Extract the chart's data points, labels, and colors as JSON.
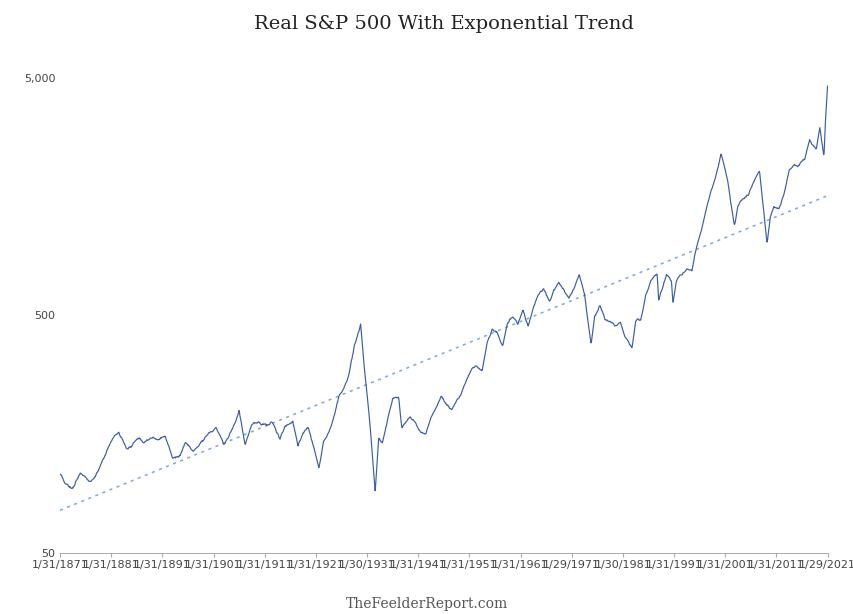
{
  "title": "Real S&P 500 With Exponential Trend",
  "footer": "TheFeelderReport.com",
  "line_color": "#3b5ea6",
  "trend_color": "#7fa8d4",
  "background_color": "#ffffff",
  "yticks": [
    50,
    500,
    5000
  ],
  "ytick_labels": [
    "50",
    "500",
    "5,000"
  ],
  "x_tick_labels": [
    "1/31/1871",
    "1/31/1881",
    "1/31/1891",
    "1/31/1901",
    "1/31/1911",
    "1/31/1921",
    "1/30/1931",
    "1/31/1941",
    "1/31/1951",
    "1/31/1961",
    "1/29/1971",
    "1/30/1981",
    "1/31/1991",
    "1/31/2001",
    "1/31/2011",
    "1/29/2021"
  ],
  "title_fontsize": 14,
  "tick_fontsize": 8,
  "footer_fontsize": 10,
  "waypoints": [
    [
      1871.08,
      96
    ],
    [
      1872.0,
      85
    ],
    [
      1873.5,
      80
    ],
    [
      1875.0,
      95
    ],
    [
      1877.0,
      90
    ],
    [
      1878.5,
      100
    ],
    [
      1880.0,
      115
    ],
    [
      1881.5,
      130
    ],
    [
      1882.5,
      135
    ],
    [
      1884.0,
      115
    ],
    [
      1885.0,
      118
    ],
    [
      1886.5,
      132
    ],
    [
      1887.5,
      125
    ],
    [
      1889.0,
      130
    ],
    [
      1890.0,
      128
    ],
    [
      1891.5,
      135
    ],
    [
      1893.0,
      112
    ],
    [
      1894.5,
      115
    ],
    [
      1895.5,
      128
    ],
    [
      1897.0,
      118
    ],
    [
      1898.5,
      130
    ],
    [
      1900.0,
      145
    ],
    [
      1901.5,
      155
    ],
    [
      1903.0,
      135
    ],
    [
      1904.5,
      155
    ],
    [
      1906.0,
      185
    ],
    [
      1907.2,
      135
    ],
    [
      1908.5,
      165
    ],
    [
      1910.0,
      170
    ],
    [
      1911.5,
      165
    ],
    [
      1912.5,
      168
    ],
    [
      1914.0,
      145
    ],
    [
      1915.0,
      165
    ],
    [
      1916.5,
      175
    ],
    [
      1917.5,
      140
    ],
    [
      1918.5,
      158
    ],
    [
      1919.5,
      170
    ],
    [
      1920.5,
      145
    ],
    [
      1921.6,
      120
    ],
    [
      1922.5,
      155
    ],
    [
      1923.5,
      170
    ],
    [
      1924.5,
      195
    ],
    [
      1925.5,
      240
    ],
    [
      1926.5,
      265
    ],
    [
      1927.5,
      310
    ],
    [
      1928.5,
      400
    ],
    [
      1929.75,
      500
    ],
    [
      1930.5,
      320
    ],
    [
      1931.5,
      200
    ],
    [
      1932.6,
      100
    ],
    [
      1933.3,
      170
    ],
    [
      1934.0,
      160
    ],
    [
      1935.0,
      200
    ],
    [
      1936.0,
      250
    ],
    [
      1937.2,
      255
    ],
    [
      1937.8,
      190
    ],
    [
      1938.5,
      200
    ],
    [
      1939.5,
      210
    ],
    [
      1940.5,
      195
    ],
    [
      1941.5,
      175
    ],
    [
      1942.5,
      180
    ],
    [
      1943.5,
      210
    ],
    [
      1944.5,
      235
    ],
    [
      1945.5,
      265
    ],
    [
      1946.5,
      245
    ],
    [
      1947.5,
      235
    ],
    [
      1948.5,
      250
    ],
    [
      1949.5,
      270
    ],
    [
      1950.5,
      300
    ],
    [
      1951.5,
      330
    ],
    [
      1952.5,
      330
    ],
    [
      1953.5,
      315
    ],
    [
      1954.5,
      415
    ],
    [
      1955.5,
      470
    ],
    [
      1956.5,
      455
    ],
    [
      1957.5,
      400
    ],
    [
      1958.5,
      495
    ],
    [
      1959.5,
      520
    ],
    [
      1960.5,
      490
    ],
    [
      1961.5,
      570
    ],
    [
      1962.5,
      490
    ],
    [
      1963.5,
      580
    ],
    [
      1964.5,
      640
    ],
    [
      1965.5,
      680
    ],
    [
      1966.7,
      600
    ],
    [
      1967.5,
      665
    ],
    [
      1968.5,
      700
    ],
    [
      1969.5,
      640
    ],
    [
      1970.5,
      590
    ],
    [
      1971.5,
      660
    ],
    [
      1972.5,
      740
    ],
    [
      1973.5,
      610
    ],
    [
      1974.8,
      370
    ],
    [
      1975.5,
      490
    ],
    [
      1976.5,
      550
    ],
    [
      1977.5,
      480
    ],
    [
      1978.5,
      470
    ],
    [
      1979.5,
      455
    ],
    [
      1980.5,
      480
    ],
    [
      1981.5,
      420
    ],
    [
      1982.8,
      380
    ],
    [
      1983.5,
      490
    ],
    [
      1984.5,
      490
    ],
    [
      1985.5,
      620
    ],
    [
      1986.5,
      700
    ],
    [
      1987.7,
      750
    ],
    [
      1988.0,
      580
    ],
    [
      1988.7,
      640
    ],
    [
      1989.5,
      760
    ],
    [
      1990.5,
      720
    ],
    [
      1990.8,
      580
    ],
    [
      1991.5,
      720
    ],
    [
      1992.5,
      760
    ],
    [
      1993.5,
      800
    ],
    [
      1994.5,
      790
    ],
    [
      1995.5,
      1000
    ],
    [
      1996.5,
      1200
    ],
    [
      1997.5,
      1500
    ],
    [
      1998.5,
      1750
    ],
    [
      1999.5,
      2100
    ],
    [
      2000.2,
      2450
    ],
    [
      2001.5,
      1850
    ],
    [
      2002.8,
      1200
    ],
    [
      2003.5,
      1450
    ],
    [
      2004.5,
      1550
    ],
    [
      2005.5,
      1620
    ],
    [
      2006.5,
      1820
    ],
    [
      2007.7,
      2050
    ],
    [
      2008.8,
      1200
    ],
    [
      2009.2,
      1000
    ],
    [
      2009.8,
      1300
    ],
    [
      2010.5,
      1450
    ],
    [
      2011.5,
      1380
    ],
    [
      2012.5,
      1580
    ],
    [
      2013.5,
      2000
    ],
    [
      2014.5,
      2150
    ],
    [
      2015.5,
      2100
    ],
    [
      2016.5,
      2250
    ],
    [
      2017.5,
      2700
    ],
    [
      2018.8,
      2450
    ],
    [
      2019.5,
      3000
    ],
    [
      2020.3,
      2300
    ],
    [
      2020.6,
      3300
    ],
    [
      2021.08,
      4900
    ]
  ]
}
